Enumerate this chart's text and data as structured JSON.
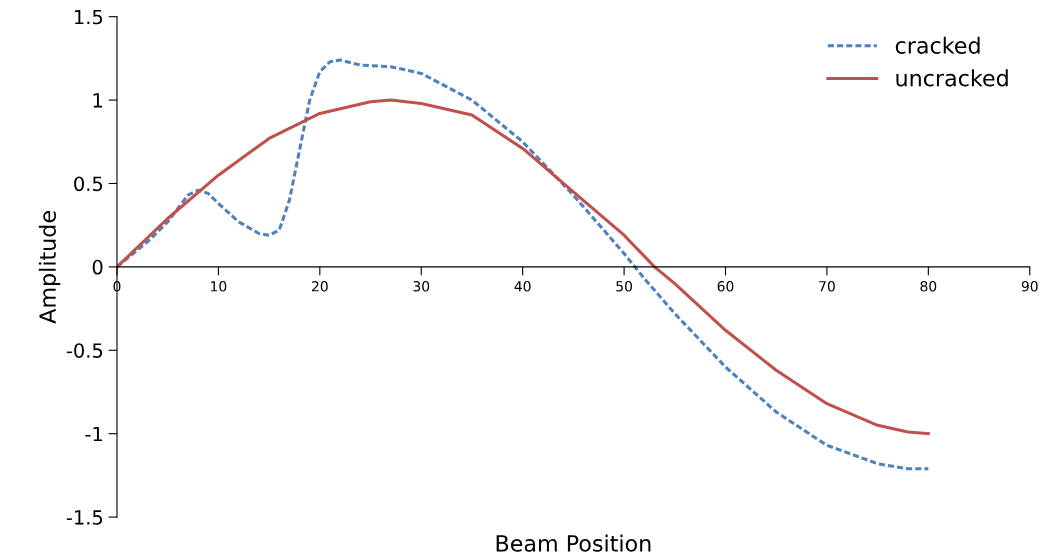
{
  "chart_data": {
    "type": "line",
    "xlabel": "Beam Position",
    "ylabel": "Amplitude",
    "xlim": [
      0,
      90
    ],
    "xticks": [
      0,
      10,
      20,
      30,
      40,
      50,
      60,
      70,
      80,
      90
    ],
    "ylim": [
      -1.5,
      1.5
    ],
    "yticks": [
      -1.5,
      -1,
      -0.5,
      0,
      0.5,
      1,
      1.5
    ],
    "grid": false,
    "legend": "top right",
    "marker": "none",
    "series": [
      {
        "name": "cracked",
        "color": "#4f81bd",
        "line_style": "dashed",
        "x": [
          0,
          3,
          5,
          7,
          8,
          9,
          10,
          12,
          14,
          15,
          16,
          17,
          18,
          19,
          20,
          21,
          22,
          24,
          27,
          30,
          35,
          40,
          45,
          50,
          52,
          55,
          60,
          65,
          70,
          75,
          78,
          80
        ],
        "values": [
          0,
          0.15,
          0.27,
          0.43,
          0.46,
          0.44,
          0.38,
          0.27,
          0.2,
          0.19,
          0.22,
          0.4,
          0.7,
          1.0,
          1.17,
          1.23,
          1.24,
          1.21,
          1.2,
          1.16,
          1.0,
          0.75,
          0.43,
          0.08,
          -0.07,
          -0.28,
          -0.6,
          -0.87,
          -1.07,
          -1.18,
          -1.21,
          -1.21
        ]
      },
      {
        "name": "uncracked",
        "color": "#c0504d",
        "line_style": "solid",
        "x": [
          0,
          5,
          10,
          15,
          20,
          25,
          27,
          30,
          35,
          40,
          45,
          50,
          53,
          55,
          60,
          65,
          70,
          75,
          78,
          80
        ],
        "values": [
          0,
          0.29,
          0.55,
          0.77,
          0.92,
          0.99,
          1.0,
          0.98,
          0.91,
          0.71,
          0.45,
          0.19,
          0,
          -0.1,
          -0.38,
          -0.62,
          -0.82,
          -0.95,
          -0.99,
          -1.0
        ]
      }
    ]
  }
}
